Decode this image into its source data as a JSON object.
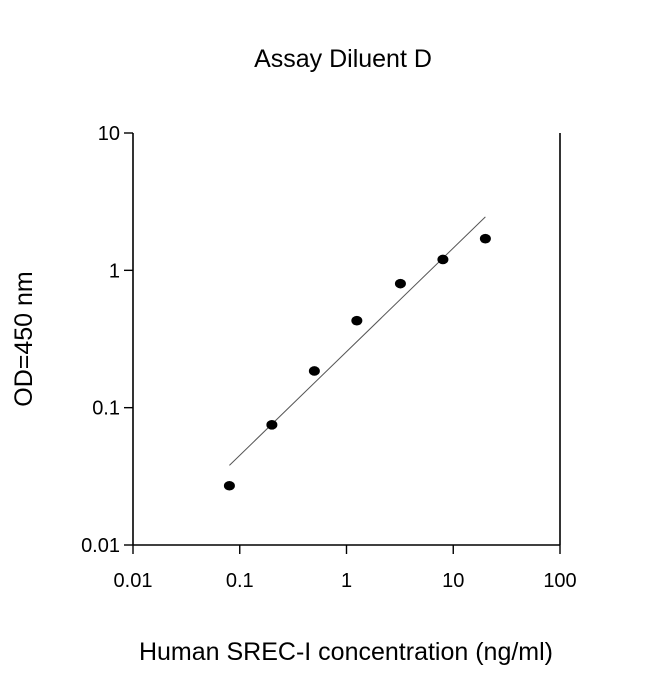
{
  "chart_data": {
    "type": "scatter",
    "title": "Assay Diluent D",
    "xlabel": "Human SREC-I concentration (ng/ml)",
    "ylabel": "OD=450 nm",
    "xscale": "log",
    "yscale": "log",
    "xlim": [
      0.01,
      100
    ],
    "ylim": [
      0.01,
      10
    ],
    "xticks": [
      0.01,
      0.1,
      1,
      10,
      100
    ],
    "yticks": [
      0.01,
      0.1,
      1,
      10
    ],
    "xtick_labels": [
      "0.01",
      "0.1",
      "1",
      "10",
      "100"
    ],
    "ytick_labels": [
      "0.01",
      "0.1",
      "1",
      "10"
    ],
    "grid": false,
    "legend": "none",
    "series": [
      {
        "x": [
          0.08,
          0.2,
          0.5,
          1.25,
          3.2,
          8,
          20
        ],
        "y": [
          0.027,
          0.075,
          0.185,
          0.43,
          0.8,
          1.2,
          1.7
        ]
      }
    ],
    "fit_line": {
      "x": [
        0.08,
        20
      ],
      "y": [
        0.038,
        2.45
      ]
    },
    "colors": {
      "points": "#000000",
      "fit_line": "#555555",
      "axes": "#000000"
    }
  }
}
